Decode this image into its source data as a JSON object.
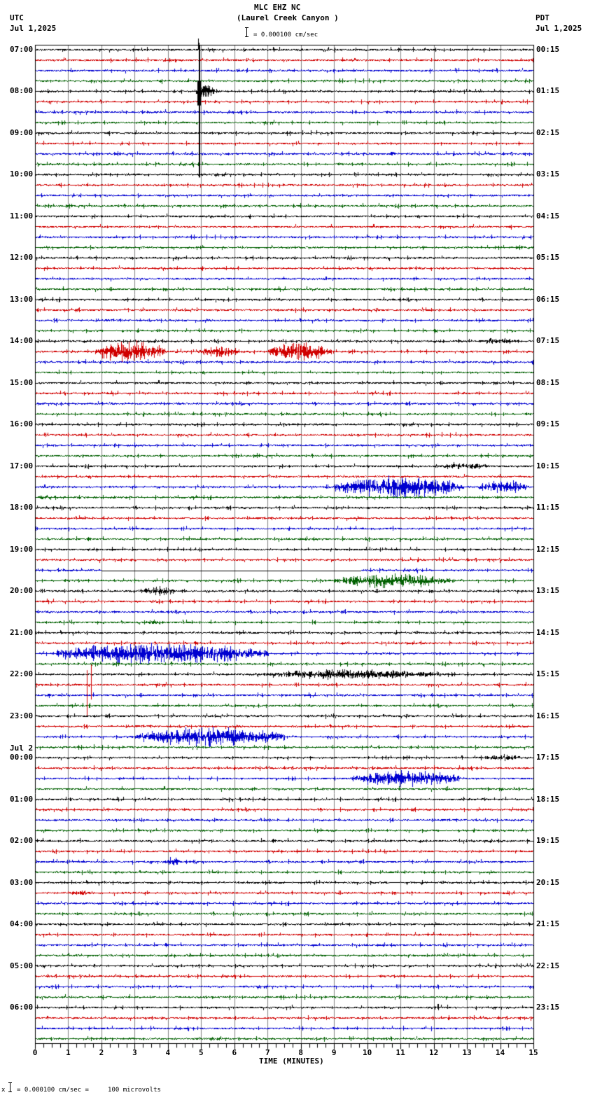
{
  "header": {
    "title": "MLC EHZ NC",
    "subtitle": "(Laurel Creek Canyon )",
    "left_tz": "UTC",
    "left_date": "Jul 1,2025",
    "right_tz": "PDT",
    "right_date": "Jul 1,2025",
    "scale_text": "= 0.000100 cm/sec"
  },
  "footer": {
    "scale_prefix": "x",
    "scale_text": "= 0.000100 cm/sec =     100 microvolts"
  },
  "colors": {
    "trace_cycle": [
      "#000000",
      "#d00000",
      "#0000d0",
      "#006000"
    ],
    "grid": "#808080",
    "background": "#ffffff"
  },
  "chart_data": {
    "type": "line",
    "title": "MLC EHZ NC (Laurel Creek Canyon )",
    "xlabel": "TIME (MINUTES)",
    "ylabel": "",
    "xlim": [
      0,
      15
    ],
    "x_ticks": [
      0,
      1,
      2,
      3,
      4,
      5,
      6,
      7,
      8,
      9,
      10,
      11,
      12,
      13,
      14,
      15
    ],
    "grid": true,
    "traces_per_hour": 4,
    "trace_minutes": 15,
    "trace_count": 96,
    "left_labels": [
      {
        "trace": 0,
        "text": "07:00"
      },
      {
        "trace": 4,
        "text": "08:00"
      },
      {
        "trace": 8,
        "text": "09:00"
      },
      {
        "trace": 12,
        "text": "10:00"
      },
      {
        "trace": 16,
        "text": "11:00"
      },
      {
        "trace": 20,
        "text": "12:00"
      },
      {
        "trace": 24,
        "text": "13:00"
      },
      {
        "trace": 28,
        "text": "14:00"
      },
      {
        "trace": 32,
        "text": "15:00"
      },
      {
        "trace": 36,
        "text": "16:00"
      },
      {
        "trace": 40,
        "text": "17:00"
      },
      {
        "trace": 44,
        "text": "18:00"
      },
      {
        "trace": 48,
        "text": "19:00"
      },
      {
        "trace": 52,
        "text": "20:00"
      },
      {
        "trace": 56,
        "text": "21:00"
      },
      {
        "trace": 60,
        "text": "22:00"
      },
      {
        "trace": 64,
        "text": "23:00"
      },
      {
        "trace": 68,
        "text": "00:00",
        "date": "Jul 2"
      },
      {
        "trace": 72,
        "text": "01:00"
      },
      {
        "trace": 76,
        "text": "02:00"
      },
      {
        "trace": 80,
        "text": "03:00"
      },
      {
        "trace": 84,
        "text": "04:00"
      },
      {
        "trace": 88,
        "text": "05:00"
      },
      {
        "trace": 92,
        "text": "06:00"
      }
    ],
    "right_labels": [
      {
        "trace": 0,
        "text": "00:15"
      },
      {
        "trace": 4,
        "text": "01:15"
      },
      {
        "trace": 8,
        "text": "02:15"
      },
      {
        "trace": 12,
        "text": "03:15"
      },
      {
        "trace": 16,
        "text": "04:15"
      },
      {
        "trace": 20,
        "text": "05:15"
      },
      {
        "trace": 24,
        "text": "06:15"
      },
      {
        "trace": 28,
        "text": "07:15"
      },
      {
        "trace": 32,
        "text": "08:15"
      },
      {
        "trace": 36,
        "text": "09:15"
      },
      {
        "trace": 40,
        "text": "10:15"
      },
      {
        "trace": 44,
        "text": "11:15"
      },
      {
        "trace": 48,
        "text": "12:15"
      },
      {
        "trace": 52,
        "text": "13:15"
      },
      {
        "trace": 56,
        "text": "14:15"
      },
      {
        "trace": 60,
        "text": "15:15"
      },
      {
        "trace": 64,
        "text": "16:15"
      },
      {
        "trace": 68,
        "text": "17:15"
      },
      {
        "trace": 72,
        "text": "18:15"
      },
      {
        "trace": 76,
        "text": "19:15"
      },
      {
        "trace": 80,
        "text": "20:15"
      },
      {
        "trace": 84,
        "text": "21:15"
      },
      {
        "trace": 88,
        "text": "22:15"
      },
      {
        "trace": 92,
        "text": "23:15"
      }
    ],
    "events": [
      {
        "trace": 0,
        "start": 4.9,
        "end": 4.95,
        "amp": 30,
        "note": "large spike spanning traces 0-12"
      },
      {
        "trace": 4,
        "start": 4.85,
        "end": 5.4,
        "amp": 14
      },
      {
        "trace": 10,
        "start": 10.7,
        "end": 10.85,
        "amp": 5
      },
      {
        "trace": 17,
        "start": 11.5,
        "end": 11.6,
        "amp": 4
      },
      {
        "trace": 28,
        "start": 13.3,
        "end": 14.6,
        "amp": 5
      },
      {
        "trace": 29,
        "start": 1.8,
        "end": 3.9,
        "amp": 20
      },
      {
        "trace": 29,
        "start": 4.9,
        "end": 6.3,
        "amp": 9
      },
      {
        "trace": 29,
        "start": 7.0,
        "end": 8.9,
        "amp": 17
      },
      {
        "trace": 34,
        "start": 13.1,
        "end": 13.3,
        "amp": 4
      },
      {
        "trace": 40,
        "start": 12.0,
        "end": 13.7,
        "amp": 6
      },
      {
        "trace": 42,
        "start": 9.0,
        "end": 12.9,
        "amp": 18
      },
      {
        "trace": 42,
        "start": 13.3,
        "end": 14.8,
        "amp": 12
      },
      {
        "trace": 43,
        "start": 0.0,
        "end": 0.5,
        "amp": 4
      },
      {
        "trace": 51,
        "start": 9.0,
        "end": 12.6,
        "amp": 12
      },
      {
        "trace": 52,
        "start": 3.1,
        "end": 4.2,
        "amp": 9
      },
      {
        "trace": 55,
        "start": 3.3,
        "end": 4.0,
        "amp": 4
      },
      {
        "trace": 58,
        "start": 0.6,
        "end": 7.0,
        "amp": 18
      },
      {
        "trace": 60,
        "start": 6.8,
        "end": 12.2,
        "amp": 9
      },
      {
        "trace": 62,
        "start": 0.2,
        "end": 0.6,
        "amp": 4
      },
      {
        "trace": 66,
        "start": 3.0,
        "end": 7.5,
        "amp": 16
      },
      {
        "trace": 68,
        "start": 13.5,
        "end": 14.6,
        "amp": 6
      },
      {
        "trace": 70,
        "start": 9.5,
        "end": 12.8,
        "amp": 14
      },
      {
        "trace": 78,
        "start": 3.9,
        "end": 4.4,
        "amp": 8
      },
      {
        "trace": 81,
        "start": 1.0,
        "end": 1.8,
        "amp": 4
      },
      {
        "trace": 92,
        "start": 12.1,
        "end": 12.15,
        "amp": 10
      }
    ],
    "gaps": [
      {
        "trace": 50,
        "start": 2.0,
        "end": 9.8,
        "note": "flat line (data gap)"
      }
    ]
  }
}
